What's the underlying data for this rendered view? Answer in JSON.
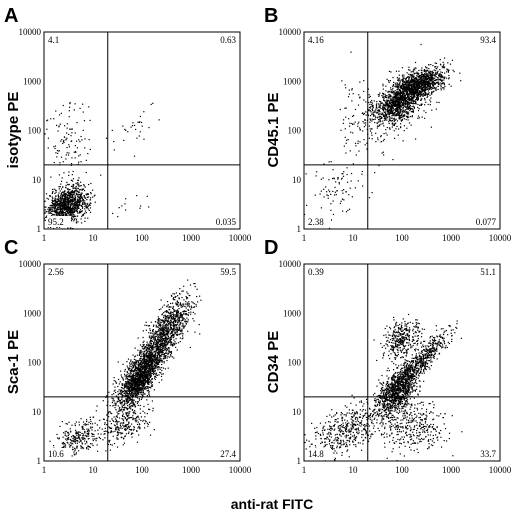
{
  "figure": {
    "xlabel": "anti-rat FITC"
  },
  "chart_data": [
    {
      "type": "scatter",
      "panel": "A",
      "ylabel": "isotype PE",
      "xscale": "log",
      "yscale": "log",
      "xlim": [
        1,
        10000
      ],
      "ylim": [
        1,
        10000
      ],
      "xticks": [
        "1",
        "10",
        "100",
        "1000",
        "10000"
      ],
      "yticks": [
        "1",
        "10",
        "100",
        "1000",
        "10000"
      ],
      "gate": {
        "x": 20,
        "y": 20
      },
      "quadrants": {
        "upper_left": "4.1",
        "upper_right": "0.63",
        "lower_left": "95.2",
        "lower_right": "0.035"
      },
      "populations": [
        {
          "n": 1100,
          "cx": 3,
          "cy": 3,
          "sx": 0.22,
          "sy": 0.2,
          "rho": 0.3
        },
        {
          "n": 120,
          "cx": 3,
          "cy": 60,
          "sx": 0.28,
          "sy": 0.45,
          "rho": 0
        },
        {
          "n": 30,
          "cx": 60,
          "cy": 120,
          "sx": 0.25,
          "sy": 0.25,
          "rho": 0.6
        },
        {
          "n": 12,
          "cx": 60,
          "cy": 3,
          "sx": 0.3,
          "sy": 0.2,
          "rho": 0
        }
      ]
    },
    {
      "type": "scatter",
      "panel": "B",
      "ylabel": "CD45.1 PE",
      "xscale": "log",
      "yscale": "log",
      "xlim": [
        1,
        10000
      ],
      "ylim": [
        1,
        10000
      ],
      "xticks": [
        "1",
        "10",
        "100",
        "1000",
        "10000"
      ],
      "yticks": [
        "1",
        "10",
        "100",
        "1000",
        "10000"
      ],
      "gate": {
        "x": 20,
        "y": 20
      },
      "quadrants": {
        "upper_left": "4.16",
        "upper_right": "93.4",
        "lower_left": "2.38",
        "lower_right": "0.077"
      },
      "populations": [
        {
          "n": 1300,
          "cx": 200,
          "cy": 800,
          "sx": 0.28,
          "sy": 0.18,
          "rho": 0.55
        },
        {
          "n": 650,
          "cx": 70,
          "cy": 300,
          "sx": 0.25,
          "sy": 0.15,
          "rho": 0.4
        },
        {
          "n": 260,
          "cx": 60,
          "cy": 250,
          "sx": 0.45,
          "sy": 0.4,
          "rho": 0.5
        },
        {
          "n": 90,
          "cx": 4,
          "cy": 6,
          "sx": 0.3,
          "sy": 0.35,
          "rho": 0.4
        },
        {
          "n": 50,
          "cx": 10,
          "cy": 200,
          "sx": 0.15,
          "sy": 0.45,
          "rho": 0
        }
      ]
    },
    {
      "type": "scatter",
      "panel": "C",
      "ylabel": "Sca-1 PE",
      "xscale": "log",
      "yscale": "log",
      "xlim": [
        1,
        10000
      ],
      "ylim": [
        1,
        10000
      ],
      "xticks": [
        "1",
        "10",
        "100",
        "1000",
        "10000"
      ],
      "yticks": [
        "1",
        "10",
        "100",
        "1000",
        "10000"
      ],
      "gate": {
        "x": 20,
        "y": 20
      },
      "quadrants": {
        "upper_left": "2.56",
        "upper_right": "59.5",
        "lower_left": "10.6",
        "lower_right": "27.4"
      },
      "populations": [
        {
          "n": 1400,
          "cx": 140,
          "cy": 110,
          "sx": 0.32,
          "sy": 0.42,
          "rho": 0.82
        },
        {
          "n": 700,
          "cx": 80,
          "cy": 35,
          "sx": 0.18,
          "sy": 0.22,
          "rho": 0.6
        },
        {
          "n": 500,
          "cx": 400,
          "cy": 700,
          "sx": 0.22,
          "sy": 0.28,
          "rho": 0.6
        },
        {
          "n": 260,
          "cx": 5,
          "cy": 3,
          "sx": 0.25,
          "sy": 0.2,
          "rho": 0.3
        },
        {
          "n": 260,
          "cx": 45,
          "cy": 6,
          "sx": 0.25,
          "sy": 0.22,
          "rho": 0.3
        }
      ]
    },
    {
      "type": "scatter",
      "panel": "D",
      "ylabel": "CD34 PE",
      "xscale": "log",
      "yscale": "log",
      "xlim": [
        1,
        10000
      ],
      "ylim": [
        1,
        10000
      ],
      "xticks": [
        "1",
        "10",
        "100",
        "1000",
        "10000"
      ],
      "yticks": [
        "1",
        "10",
        "100",
        "1000",
        "10000"
      ],
      "gate": {
        "x": 20,
        "y": 20
      },
      "quadrants": {
        "upper_left": "0.39",
        "upper_right": "51.1",
        "lower_left": "14.8",
        "lower_right": "33.7"
      },
      "populations": [
        {
          "n": 800,
          "cx": 80,
          "cy": 25,
          "sx": 0.2,
          "sy": 0.25,
          "rho": 0.5
        },
        {
          "n": 700,
          "cx": 180,
          "cy": 80,
          "sx": 0.35,
          "sy": 0.35,
          "rho": 0.92
        },
        {
          "n": 350,
          "cx": 100,
          "cy": 300,
          "sx": 0.2,
          "sy": 0.2,
          "rho": 0.3
        },
        {
          "n": 450,
          "cx": 7,
          "cy": 4,
          "sx": 0.38,
          "sy": 0.28,
          "rho": 0.55
        },
        {
          "n": 350,
          "cx": 150,
          "cy": 5,
          "sx": 0.35,
          "sy": 0.25,
          "rho": 0
        }
      ]
    }
  ]
}
